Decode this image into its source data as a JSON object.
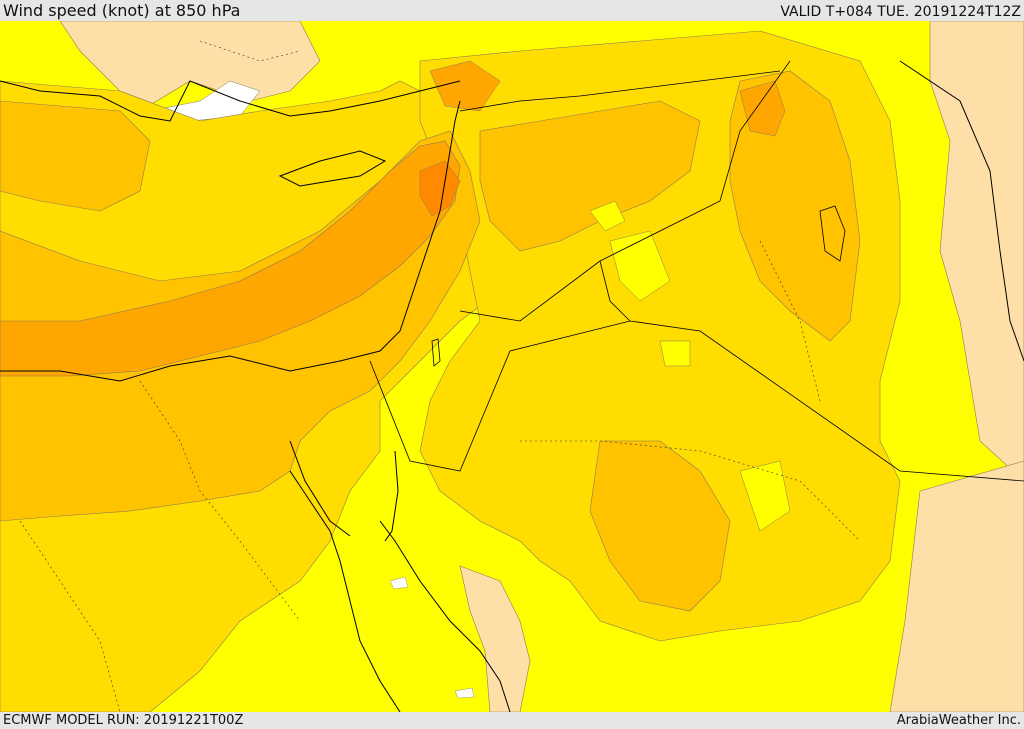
{
  "header": {
    "title": "Wind speed (knot) at 850 hPa",
    "valid": "VALID T+084 TUE. 20191224T12Z"
  },
  "footer": {
    "model_run": "ECMWF MODEL RUN: 20191221T00Z",
    "credit": "ArabiaWeather Inc."
  },
  "colors": {
    "lightest": "#ffffc8",
    "pale_peach": "#ffdfa8",
    "yellow": "#ffff00",
    "gold": "#ffdd00",
    "amber": "#ffc300",
    "orange": "#ffa600",
    "dark_orange": "#ff8a00",
    "land_edge": "#000000"
  }
}
